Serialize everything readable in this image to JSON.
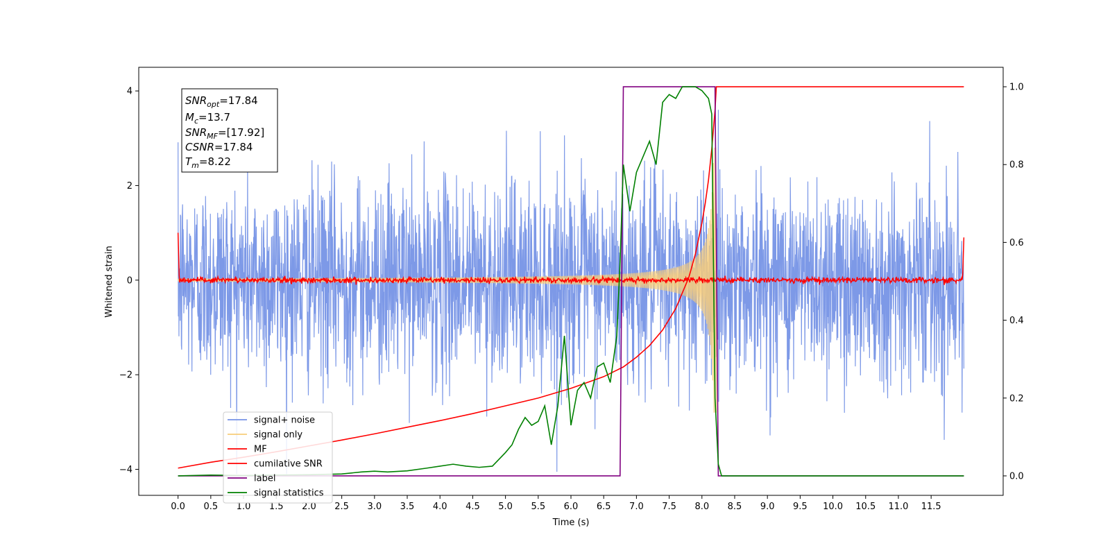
{
  "chart_data": {
    "type": "line",
    "xlabel": "Time (s)",
    "ylabel": "Whitened strain",
    "xlim": [
      -0.6,
      12.6
    ],
    "ylim": [
      -4.55,
      4.5
    ],
    "y2lim": [
      -0.05,
      1.05
    ],
    "x_ticks": [
      0.0,
      0.5,
      1.0,
      1.5,
      2.0,
      2.5,
      3.0,
      3.5,
      4.0,
      4.5,
      5.0,
      5.5,
      6.0,
      6.5,
      7.0,
      7.5,
      8.0,
      8.5,
      9.0,
      9.5,
      10.0,
      10.5,
      11.0,
      11.5
    ],
    "x_tick_labels": [
      "0.0",
      "0.5",
      "1.0",
      "1.5",
      "2.0",
      "2.5",
      "3.0",
      "3.5",
      "4.0",
      "4.5",
      "5.0",
      "5.5",
      "6.0",
      "6.5",
      "7.0",
      "7.5",
      "8.0",
      "8.5",
      "9.0",
      "9.5",
      "10.0",
      "10.5",
      "11.0",
      "11.5"
    ],
    "y_ticks": [
      -4,
      -2,
      0,
      2,
      4
    ],
    "y_tick_labels": [
      "−4",
      "−2",
      "0",
      "2",
      "4"
    ],
    "y2_ticks": [
      0.0,
      0.2,
      0.4,
      0.6,
      0.8,
      1.0
    ],
    "y2_tick_labels": [
      "0.0",
      "0.2",
      "0.4",
      "0.6",
      "0.8",
      "1.0"
    ],
    "grid": false,
    "legend_position": "lower-left",
    "legend": [
      {
        "label": "signal+ noise",
        "color": "#7693e6"
      },
      {
        "label": "signal only",
        "color": "#f7cd7a"
      },
      {
        "label": "MF",
        "color": "#ff0000"
      },
      {
        "label": "cumilative SNR",
        "color": "#ff0000"
      },
      {
        "label": "label",
        "color": "#800080"
      },
      {
        "label": "signal statistics",
        "color": "#008000"
      }
    ],
    "annotations": {
      "snr_opt": {
        "base": "SNR",
        "sub": "opt",
        "value": "=17.84"
      },
      "mc": {
        "base": "M",
        "sub": "c",
        "value": "=13.7"
      },
      "snr_mf": {
        "base": "SNR",
        "sub": "MF",
        "value": "=[17.92]"
      },
      "csnr": {
        "base": "CSNR",
        "sub": "",
        "value": "=17.84"
      },
      "tm": {
        "base": "T",
        "sub": "m",
        "value": "=8.22"
      }
    },
    "series": [
      {
        "name": "signal+ noise",
        "axis": "left",
        "color": "#7693e6",
        "description_values": {
          "x_range": [
            0.0,
            12.0
          ],
          "typical_amplitude": 2.0,
          "max": 4.1,
          "min": -4.1
        }
      },
      {
        "name": "signal only",
        "axis": "left",
        "color": "#f7cd7a",
        "chirp": {
          "start": 0.0,
          "end": 8.22,
          "amp_start": 0.03,
          "amp_end": 2.8
        }
      },
      {
        "name": "MF",
        "axis": "left",
        "color": "#ff0000",
        "x_range": [
          0.0,
          12.0
        ],
        "edge_value_start": 1.0,
        "edge_value_end": 0.9
      },
      {
        "name": "cumilative SNR",
        "axis": "right",
        "color": "#ff0000",
        "x": [
          0.0,
          0.5,
          1.0,
          1.5,
          2.0,
          2.5,
          3.0,
          3.5,
          4.0,
          4.5,
          5.0,
          5.5,
          6.0,
          6.5,
          6.8,
          7.0,
          7.2,
          7.4,
          7.6,
          7.8,
          7.9,
          8.0,
          8.05,
          8.1,
          8.15,
          8.2,
          8.22,
          12.0
        ],
        "y": [
          0.02,
          0.035,
          0.048,
          0.062,
          0.077,
          0.092,
          0.108,
          0.125,
          0.142,
          0.16,
          0.18,
          0.2,
          0.225,
          0.255,
          0.28,
          0.305,
          0.335,
          0.375,
          0.43,
          0.51,
          0.57,
          0.65,
          0.7,
          0.76,
          0.84,
          0.94,
          1.0,
          1.0
        ]
      },
      {
        "name": "label",
        "axis": "right",
        "color": "#800080",
        "x": [
          0.0,
          6.75,
          6.8,
          8.2,
          8.25,
          12.0
        ],
        "y": [
          0.0,
          0.0,
          1.0,
          1.0,
          0.0,
          0.0
        ]
      },
      {
        "name": "signal statistics",
        "axis": "right",
        "color": "#008000",
        "x": [
          0.0,
          0.5,
          1.0,
          1.5,
          2.0,
          2.5,
          2.8,
          3.0,
          3.2,
          3.5,
          3.8,
          4.0,
          4.2,
          4.4,
          4.6,
          4.8,
          5.0,
          5.1,
          5.2,
          5.3,
          5.4,
          5.5,
          5.6,
          5.7,
          5.8,
          5.9,
          6.0,
          6.1,
          6.2,
          6.3,
          6.4,
          6.5,
          6.6,
          6.7,
          6.75,
          6.8,
          6.85,
          6.9,
          7.0,
          7.1,
          7.2,
          7.3,
          7.4,
          7.5,
          7.6,
          7.7,
          7.8,
          7.9,
          8.0,
          8.1,
          8.15,
          8.2,
          8.25,
          8.3,
          11.0,
          12.0
        ],
        "y": [
          0.0,
          0.002,
          0.001,
          0.002,
          0.003,
          0.005,
          0.01,
          0.012,
          0.01,
          0.013,
          0.02,
          0.025,
          0.03,
          0.025,
          0.022,
          0.025,
          0.06,
          0.08,
          0.12,
          0.15,
          0.13,
          0.14,
          0.18,
          0.08,
          0.18,
          0.36,
          0.13,
          0.22,
          0.24,
          0.2,
          0.28,
          0.29,
          0.24,
          0.36,
          0.55,
          0.8,
          0.74,
          0.68,
          0.78,
          0.82,
          0.86,
          0.8,
          0.96,
          0.98,
          0.97,
          1.0,
          1.0,
          1.0,
          0.99,
          0.97,
          0.93,
          0.2,
          0.03,
          0.0,
          0.0,
          0.0
        ]
      }
    ]
  }
}
